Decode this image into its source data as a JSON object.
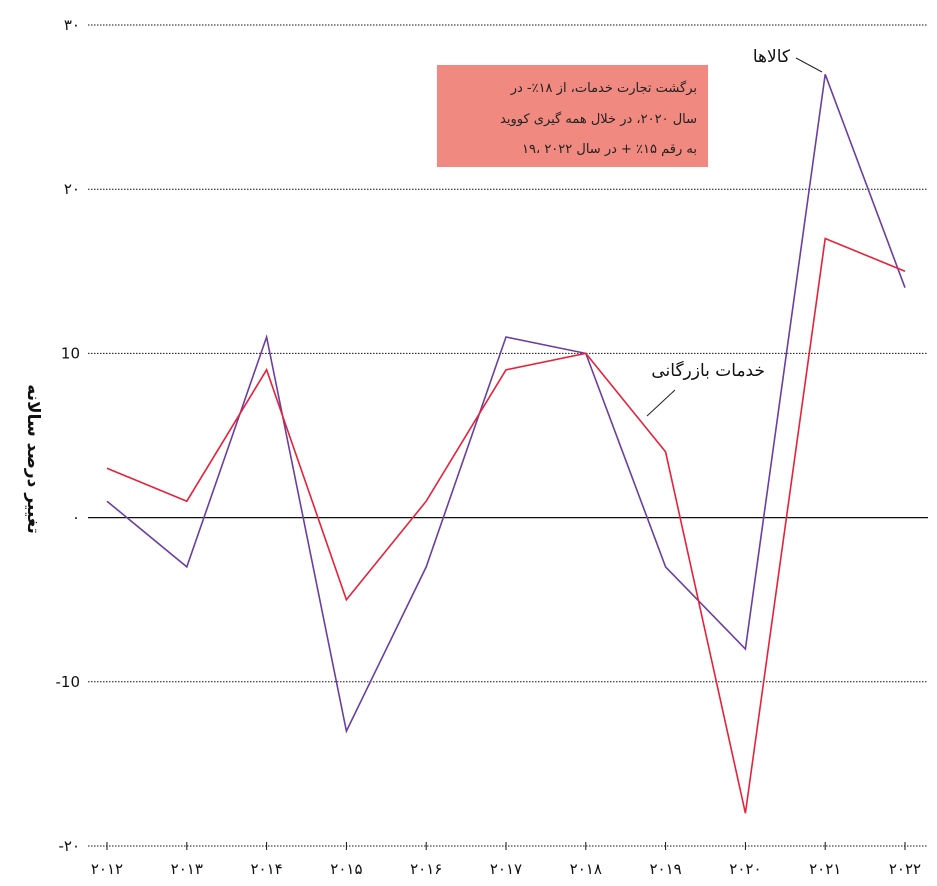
{
  "chart_data": {
    "type": "line",
    "title": "",
    "xlabel": "",
    "ylabel": "تغییر درصد سالانه",
    "x": [
      "۲۰۱۲",
      "۲۰۱۳",
      "۲۰۱۴",
      "۲۰۱۵",
      "۲۰۱۶",
      "۲۰۱۷",
      "۲۰۱۸",
      "۲۰۱۹",
      "۲۰۲۰",
      "۲۰۲۱",
      "۲۰۲۲"
    ],
    "ylim": [
      -20,
      30
    ],
    "yticks": [
      {
        "value": 30,
        "label": "۳۰"
      },
      {
        "value": 20,
        "label": "۲۰"
      },
      {
        "value": 10,
        "label": "10"
      },
      {
        "value": 0,
        "label": "۰"
      },
      {
        "value": -10,
        "label": "-10"
      },
      {
        "value": -20,
        "label": "-۲۰"
      }
    ],
    "grid": true,
    "series": [
      {
        "name": "کالاها",
        "color": "#6a3fa0",
        "values": [
          1,
          -3,
          11,
          -13,
          -3,
          11,
          10,
          -3,
          -8,
          27,
          14
        ]
      },
      {
        "name": "خدمات بازرگانی",
        "color": "#e8203a",
        "values": [
          3,
          1,
          9,
          -5,
          1,
          9,
          10,
          4,
          -18,
          17,
          15
        ]
      }
    ],
    "annotation": {
      "lines": [
        "برگشت تجارت خدمات، از ۱۸٪- در",
        "سال ۲۰۲۰، در خلال همه گیری کووید",
        "۱۹، به رقم ۱۵٪ + در سال ۲۰۲۲"
      ],
      "background": "#f08a80"
    }
  }
}
